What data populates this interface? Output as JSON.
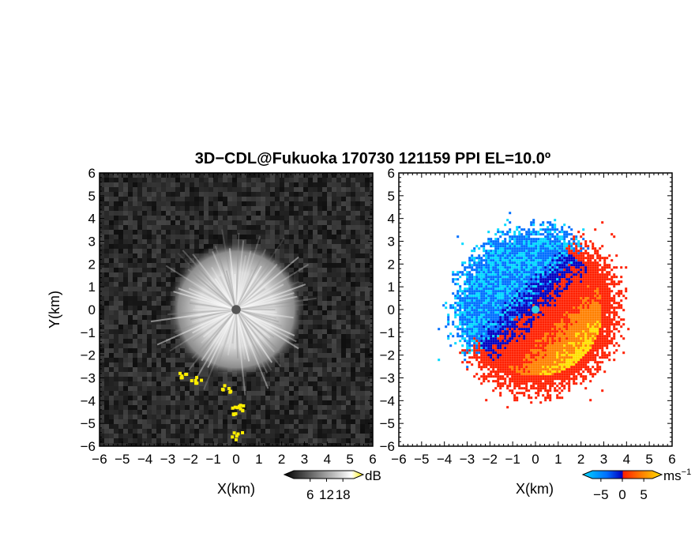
{
  "title": "3D−CDL@Fukuoka 170730 121159 PPI EL=10.0º",
  "chart_data": [
    {
      "type": "heatmap",
      "panel": "left",
      "quantity": "backscatter intensity",
      "xlabel": "X(km)",
      "ylabel": "Y(km)",
      "xlim": [
        -6,
        6
      ],
      "ylim": [
        -6,
        6
      ],
      "xticks": [
        "−6",
        "−5",
        "−4",
        "−3",
        "−2",
        "−1",
        "0",
        "1",
        "2",
        "3",
        "4",
        "5",
        "6"
      ],
      "yticks": [
        "−6",
        "−5",
        "−4",
        "−3",
        "−2",
        "−1",
        "0",
        "1",
        "2",
        "3",
        "4",
        "5",
        "6"
      ],
      "colorbar": {
        "unit": "dB",
        "ticks": [
          "6",
          "12",
          "18"
        ],
        "tick_values": [
          6,
          12,
          18
        ],
        "range": [
          0,
          22
        ],
        "colors": [
          "#000000",
          "#ffffff",
          "#ffee00"
        ]
      },
      "features": {
        "bright_core_radius_km": 3.0,
        "blind_zone_radius_km": 0.2,
        "hotspots": [
          {
            "x": -2.3,
            "y": -2.8
          },
          {
            "x": -1.8,
            "y": -3.0
          },
          {
            "x": -0.5,
            "y": -3.4
          },
          {
            "x": 0.1,
            "y": -4.2
          },
          {
            "x": 0.0,
            "y": -4.4
          },
          {
            "x": 0.0,
            "y": -5.5
          }
        ]
      }
    },
    {
      "type": "heatmap",
      "panel": "right",
      "quantity": "Doppler velocity",
      "xlabel": "X(km)",
      "xlim": [
        -6,
        6
      ],
      "ylim": [
        -6,
        6
      ],
      "xticks": [
        "−6",
        "−5",
        "−4",
        "−3",
        "−2",
        "−1",
        "0",
        "1",
        "2",
        "3",
        "4",
        "5",
        "6"
      ],
      "yticks": [
        "−6",
        "−5",
        "−4",
        "−3",
        "−2",
        "−1",
        "0",
        "1",
        "2",
        "3",
        "4",
        "5",
        "6"
      ],
      "colorbar": {
        "unit": "ms",
        "unit_exponent": "−1",
        "ticks": [
          "−5",
          "0",
          "5"
        ],
        "tick_values": [
          -5,
          0,
          5
        ],
        "range": [
          -7,
          7
        ],
        "colors": [
          "#00d8ff",
          "#0070ff",
          "#0000c0",
          "#ff2000",
          "#ff8000",
          "#ffe000"
        ]
      },
      "features": {
        "data_radius_km": 3.6,
        "approaching_sector": "north-west (blue, negative)",
        "receding_sector": "south-east (red/yellow, positive)"
      }
    }
  ]
}
